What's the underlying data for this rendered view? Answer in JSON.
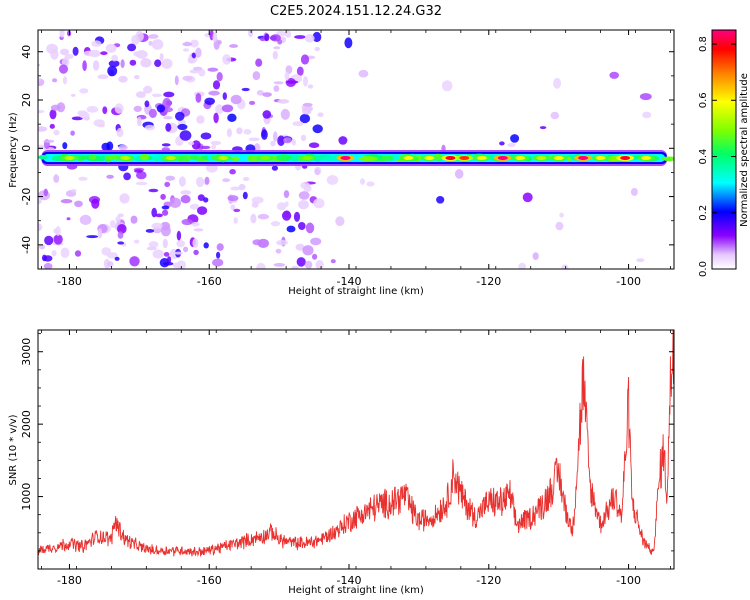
{
  "title": "C2E5.2024.151.12.24.G32",
  "chart_data": [
    {
      "type": "heatmap",
      "xlabel": "Height of straight line (km)",
      "ylabel": "Frequency (Hz)",
      "xlim": [
        -184.5,
        -93.5
      ],
      "ylim": [
        -50,
        49
      ],
      "xticks": [
        -180,
        -160,
        -140,
        -120,
        -100
      ],
      "yticks": [
        -40,
        -20,
        0,
        20,
        40
      ],
      "colorbar": {
        "label": "Normalized spectral amplitude",
        "range": [
          0,
          0.85
        ],
        "ticks": [
          0.0,
          0.2,
          0.4,
          0.6,
          0.8
        ]
      },
      "band": {
        "frequency_hz": -4,
        "peaks": [
          {
            "x": -140.5,
            "value": 0.85
          },
          {
            "x": -131.5,
            "value": 0.6
          },
          {
            "x": -128.5,
            "value": 0.6
          },
          {
            "x": -125.5,
            "value": 0.8
          },
          {
            "x": -123.5,
            "value": 0.75
          },
          {
            "x": -121.0,
            "value": 0.6
          },
          {
            "x": -118.0,
            "value": 0.85
          },
          {
            "x": -115.5,
            "value": 0.6
          },
          {
            "x": -112.5,
            "value": 0.55
          },
          {
            "x": -110.0,
            "value": 0.6
          },
          {
            "x": -106.5,
            "value": 0.85
          },
          {
            "x": -104.0,
            "value": 0.6
          },
          {
            "x": -100.5,
            "value": 0.8
          },
          {
            "x": -97.5,
            "value": 0.6
          },
          {
            "x": -180.0,
            "value": 0.55
          },
          {
            "x": -172.0,
            "value": 0.55
          },
          {
            "x": -165.5,
            "value": 0.55
          },
          {
            "x": -158.0,
            "value": 0.55
          },
          {
            "x": -152.0,
            "value": 0.5
          },
          {
            "x": -146.0,
            "value": 0.5
          }
        ]
      }
    },
    {
      "type": "line",
      "xlabel": "Height of straight line (km)",
      "ylabel": "SNR (10 * v/v)",
      "xlim": [
        -184.5,
        -93.5
      ],
      "ylim": [
        0,
        3300
      ],
      "xticks": [
        -180,
        -160,
        -140,
        -120,
        -100
      ],
      "yticks": [
        1000,
        2000,
        3000
      ],
      "color": "#e8312e",
      "series": [
        {
          "x": [
            -184.5,
            -182,
            -180,
            -178,
            -176,
            -174,
            -173.5,
            -172,
            -170,
            -168,
            -166,
            -164,
            -162,
            -160,
            -158,
            -156,
            -154,
            -152,
            -151,
            -150,
            -148,
            -146,
            -144,
            -142,
            -140,
            -138,
            -136,
            -134,
            -132,
            -131,
            -130,
            -128,
            -126,
            -125,
            -124,
            -122,
            -120,
            -118,
            -117,
            -116,
            -114,
            -112,
            -110,
            -109,
            -108,
            -106.5,
            -105.5,
            -104,
            -102,
            -101,
            -100,
            -99.5,
            -98,
            -96.5,
            -95.5,
            -95,
            -94.5,
            -94,
            -93.5
          ],
          "values": [
            250,
            300,
            350,
            300,
            450,
            400,
            650,
            400,
            300,
            250,
            250,
            250,
            230,
            250,
            300,
            350,
            400,
            450,
            500,
            400,
            350,
            350,
            400,
            500,
            650,
            750,
            850,
            900,
            1000,
            800,
            650,
            700,
            900,
            1300,
            1000,
            700,
            900,
            900,
            1000,
            600,
            700,
            900,
            1300,
            800,
            500,
            2550,
            1100,
            600,
            1000,
            700,
            2200,
            900,
            400,
            200,
            1300,
            1600,
            1000,
            2500,
            3300
          ]
        }
      ]
    }
  ]
}
